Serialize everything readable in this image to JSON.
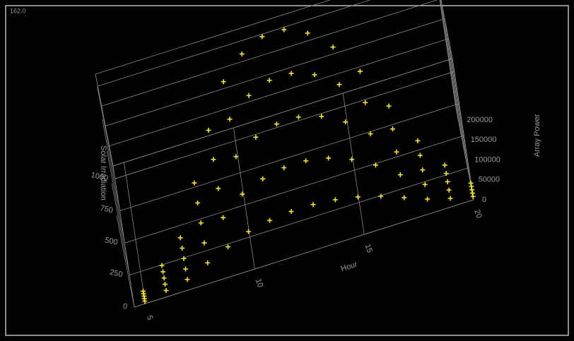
{
  "chart_data": {
    "type": "scatter3d",
    "annotation": "162.0",
    "xlabel": "Hour",
    "ylabel": "Solar Irradiation",
    "zlabel": "Array Power",
    "color": "#f2e33a",
    "xlim": [
      4.5,
      20
    ],
    "ylim": [
      0,
      1100
    ],
    "zlim": [
      0,
      230000
    ],
    "xticks": [
      5,
      10,
      15,
      20
    ],
    "yticks": [
      0,
      250,
      500,
      750,
      1000
    ],
    "zticks": [
      0,
      50000,
      100000,
      150000,
      200000
    ],
    "grid": true,
    "x": [
      5,
      5,
      5,
      5,
      5,
      6,
      6,
      6,
      6,
      6,
      7,
      7,
      7,
      7,
      7,
      8,
      8,
      8,
      8,
      8,
      9,
      9,
      9,
      9,
      9,
      10,
      10,
      10,
      10,
      10,
      11,
      11,
      11,
      11,
      11,
      12,
      12,
      12,
      12,
      12,
      13,
      13,
      13,
      13,
      13,
      14,
      14,
      14,
      14,
      14,
      15,
      15,
      15,
      15,
      15,
      16,
      16,
      16,
      16,
      16,
      17,
      17,
      17,
      17,
      17,
      18,
      18,
      18,
      18,
      18,
      19,
      19,
      19,
      19,
      19,
      20,
      20,
      20,
      20,
      20
    ],
    "y": [
      12,
      24,
      36,
      48,
      60,
      30,
      60,
      90,
      120,
      150,
      50,
      100,
      150,
      200,
      250,
      96,
      192,
      288,
      384,
      480,
      140,
      280,
      420,
      560,
      700,
      180,
      360,
      540,
      720,
      900,
      200,
      400,
      600,
      800,
      1000,
      210,
      420,
      630,
      840,
      1050,
      210,
      420,
      630,
      840,
      1050,
      200,
      400,
      600,
      800,
      1000,
      180,
      360,
      540,
      720,
      900,
      150,
      300,
      450,
      600,
      750,
      110,
      220,
      330,
      440,
      550,
      70,
      140,
      210,
      280,
      350,
      40,
      80,
      120,
      160,
      200,
      16,
      32,
      48,
      64,
      80
    ],
    "z": [
      2400,
      4800,
      7200,
      9600,
      12000,
      6000,
      12000,
      18000,
      24000,
      30000,
      10000,
      20000,
      30000,
      40000,
      50000,
      19200,
      38400,
      57600,
      76800,
      96000,
      28000,
      56000,
      84000,
      112000,
      140000,
      36000,
      72000,
      108000,
      144000,
      180000,
      40000,
      80000,
      120000,
      160000,
      200000,
      42000,
      84000,
      126000,
      168000,
      210000,
      42000,
      84000,
      126000,
      168000,
      210000,
      40000,
      80000,
      120000,
      160000,
      200000,
      36000,
      72000,
      108000,
      144000,
      180000,
      30000,
      60000,
      90000,
      120000,
      150000,
      22000,
      44000,
      66000,
      88000,
      110000,
      14000,
      28000,
      42000,
      56000,
      70000,
      8000,
      16000,
      24000,
      32000,
      40000,
      3200,
      6400,
      9600,
      12800,
      16000
    ]
  }
}
